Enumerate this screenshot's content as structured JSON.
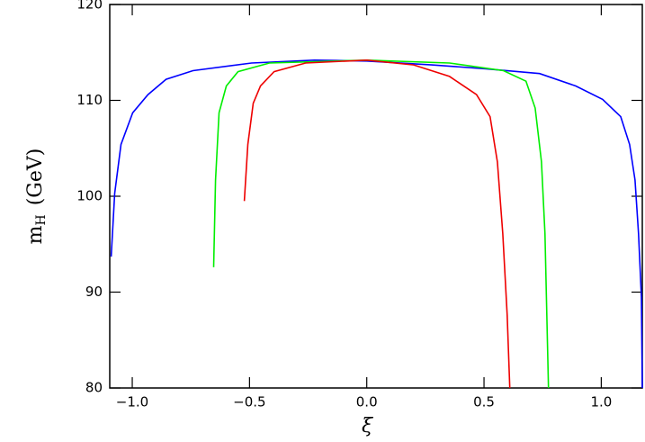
{
  "chart_data": {
    "type": "line",
    "xlabel": "ξ",
    "ylabel": {
      "symbol": "m",
      "subscript": "H",
      "unit": "(GeV)"
    },
    "xlim": [
      -1.096,
      1.175
    ],
    "ylim": [
      80,
      120
    ],
    "xticks": [
      {
        "value": -1,
        "label": "−1.0"
      },
      {
        "value": -0.5,
        "label": "−0.5"
      },
      {
        "value": 0,
        "label": "0.0"
      },
      {
        "value": 0.5,
        "label": "0.5"
      },
      {
        "value": 1,
        "label": "1.0"
      }
    ],
    "yticks": [
      80,
      90,
      100,
      110,
      120
    ],
    "series": [
      {
        "color": "#0000ff",
        "x": [
          -1.09,
          -1.075,
          -1.048,
          -0.998,
          -0.933,
          -0.856,
          -0.741,
          -0.491,
          -0.223,
          0,
          0.276,
          0.507,
          0.737,
          0.891,
          1.006,
          1.083,
          1.121,
          1.144,
          1.159,
          1.171,
          1.175
        ],
        "values": [
          93.7,
          100.3,
          105.4,
          108.7,
          110.6,
          112.2,
          113.1,
          113.9,
          114.2,
          114.1,
          113.7,
          113.3,
          112.8,
          111.5,
          110.1,
          108.3,
          105.4,
          101.7,
          96.1,
          89.5,
          80
        ]
      },
      {
        "color": "#00ee00",
        "x": [
          -0.653,
          -0.645,
          -0.63,
          -0.599,
          -0.549,
          -0.415,
          0,
          0.353,
          0.583,
          0.679,
          0.718,
          0.745,
          0.76,
          0.775
        ],
        "values": [
          92.6,
          101.7,
          108.7,
          111.5,
          113.0,
          113.9,
          114.2,
          113.9,
          113.1,
          112.0,
          109.2,
          103.6,
          96.1,
          80
        ]
      },
      {
        "color": "#ee0000",
        "x": [
          -0.522,
          -0.507,
          -0.484,
          -0.453,
          -0.395,
          -0.261,
          0,
          0.2,
          0.353,
          0.468,
          0.526,
          0.557,
          0.58,
          0.599,
          0.61
        ],
        "values": [
          99.5,
          105.4,
          109.7,
          111.5,
          113.0,
          113.9,
          114.2,
          113.7,
          112.5,
          110.6,
          108.3,
          103.6,
          96.1,
          87.6,
          80
        ]
      }
    ]
  }
}
